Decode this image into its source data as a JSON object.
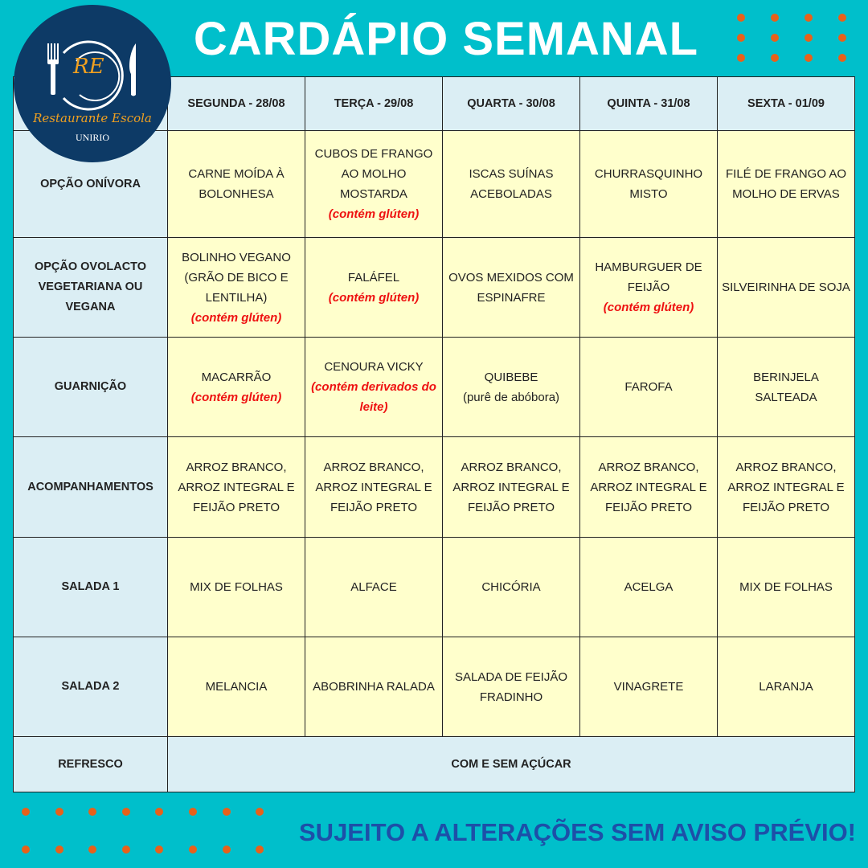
{
  "title": "CARDÁPIO SEMANAL",
  "logo": {
    "initials": "RE",
    "name": "Restaurante Escola",
    "institution": "UNIRIO"
  },
  "colors": {
    "background": "#00bfcb",
    "dots": "#e8611a",
    "header_cells": "#dbeef4",
    "menu_cells": "#ffffcc",
    "notes": "#ee1111",
    "footer": "#1d4fa8"
  },
  "days": [
    "SEGUNDA - 28/08",
    "TERÇA - 29/08",
    "QUARTA - 30/08",
    "QUINTA - 31/08",
    "SEXTA - 01/09"
  ],
  "rows": [
    {
      "label": "OPÇÃO ONÍVORA",
      "cells": [
        {
          "text": "CARNE MOÍDA À BOLONHESA"
        },
        {
          "text": "CUBOS DE FRANGO AO MOLHO MOSTARDA",
          "note": "(contém glúten)"
        },
        {
          "text": "ISCAS SUÍNAS ACEBOLADAS"
        },
        {
          "text": "CHURRASQUINHO MISTO"
        },
        {
          "text": "FILÉ DE FRANGO AO MOLHO DE ERVAS"
        }
      ]
    },
    {
      "label": "OPÇÃO OVOLACTO VEGETARIANA OU VEGANA",
      "cells": [
        {
          "text": "BOLINHO VEGANO (GRÃO DE BICO E LENTILHA)",
          "note": "(contém glúten)"
        },
        {
          "text": "FALÁFEL",
          "note": "(contém glúten)"
        },
        {
          "text": "OVOS MEXIDOS COM ESPINAFRE"
        },
        {
          "text": "HAMBURGUER DE FEIJÃO",
          "note": "(contém glúten)"
        },
        {
          "text": "SILVEIRINHA DE SOJA"
        }
      ]
    },
    {
      "label": "GUARNIÇÃO",
      "cells": [
        {
          "text": "MACARRÃO",
          "note": "(contém glúten)"
        },
        {
          "text": "CENOURA VICKY",
          "note": "(contém derivados do leite)"
        },
        {
          "text": "QUIBEBE",
          "sub": "(purê de abóbora)"
        },
        {
          "text": "FAROFA"
        },
        {
          "text": "BERINJELA SALTEADA"
        }
      ]
    },
    {
      "label": "ACOMPANHAMENTOS",
      "cells": [
        {
          "text": "ARROZ BRANCO, ARROZ INTEGRAL E FEIJÃO PRETO"
        },
        {
          "text": "ARROZ BRANCO, ARROZ INTEGRAL E FEIJÃO PRETO"
        },
        {
          "text": "ARROZ BRANCO, ARROZ INTEGRAL E FEIJÃO PRETO"
        },
        {
          "text": "ARROZ BRANCO, ARROZ INTEGRAL E FEIJÃO PRETO"
        },
        {
          "text": "ARROZ BRANCO, ARROZ INTEGRAL E FEIJÃO PRETO"
        }
      ]
    },
    {
      "label": "SALADA 1",
      "cells": [
        {
          "text": "MIX DE FOLHAS"
        },
        {
          "text": "ALFACE"
        },
        {
          "text": "CHICÓRIA"
        },
        {
          "text": "ACELGA"
        },
        {
          "text": "MIX DE FOLHAS"
        }
      ]
    },
    {
      "label": "SALADA 2",
      "cells": [
        {
          "text": "MELANCIA"
        },
        {
          "text": "ABOBRINHA RALADA"
        },
        {
          "text": "SALADA DE FEIJÃO FRADINHO"
        },
        {
          "text": "VINAGRETE"
        },
        {
          "text": "LARANJA"
        }
      ]
    }
  ],
  "refresco": {
    "label": "REFRESCO",
    "value": "COM E SEM AÇÚCAR"
  },
  "footer": "SUJEITO A ALTERAÇÕES SEM AVISO PRÉVIO!"
}
